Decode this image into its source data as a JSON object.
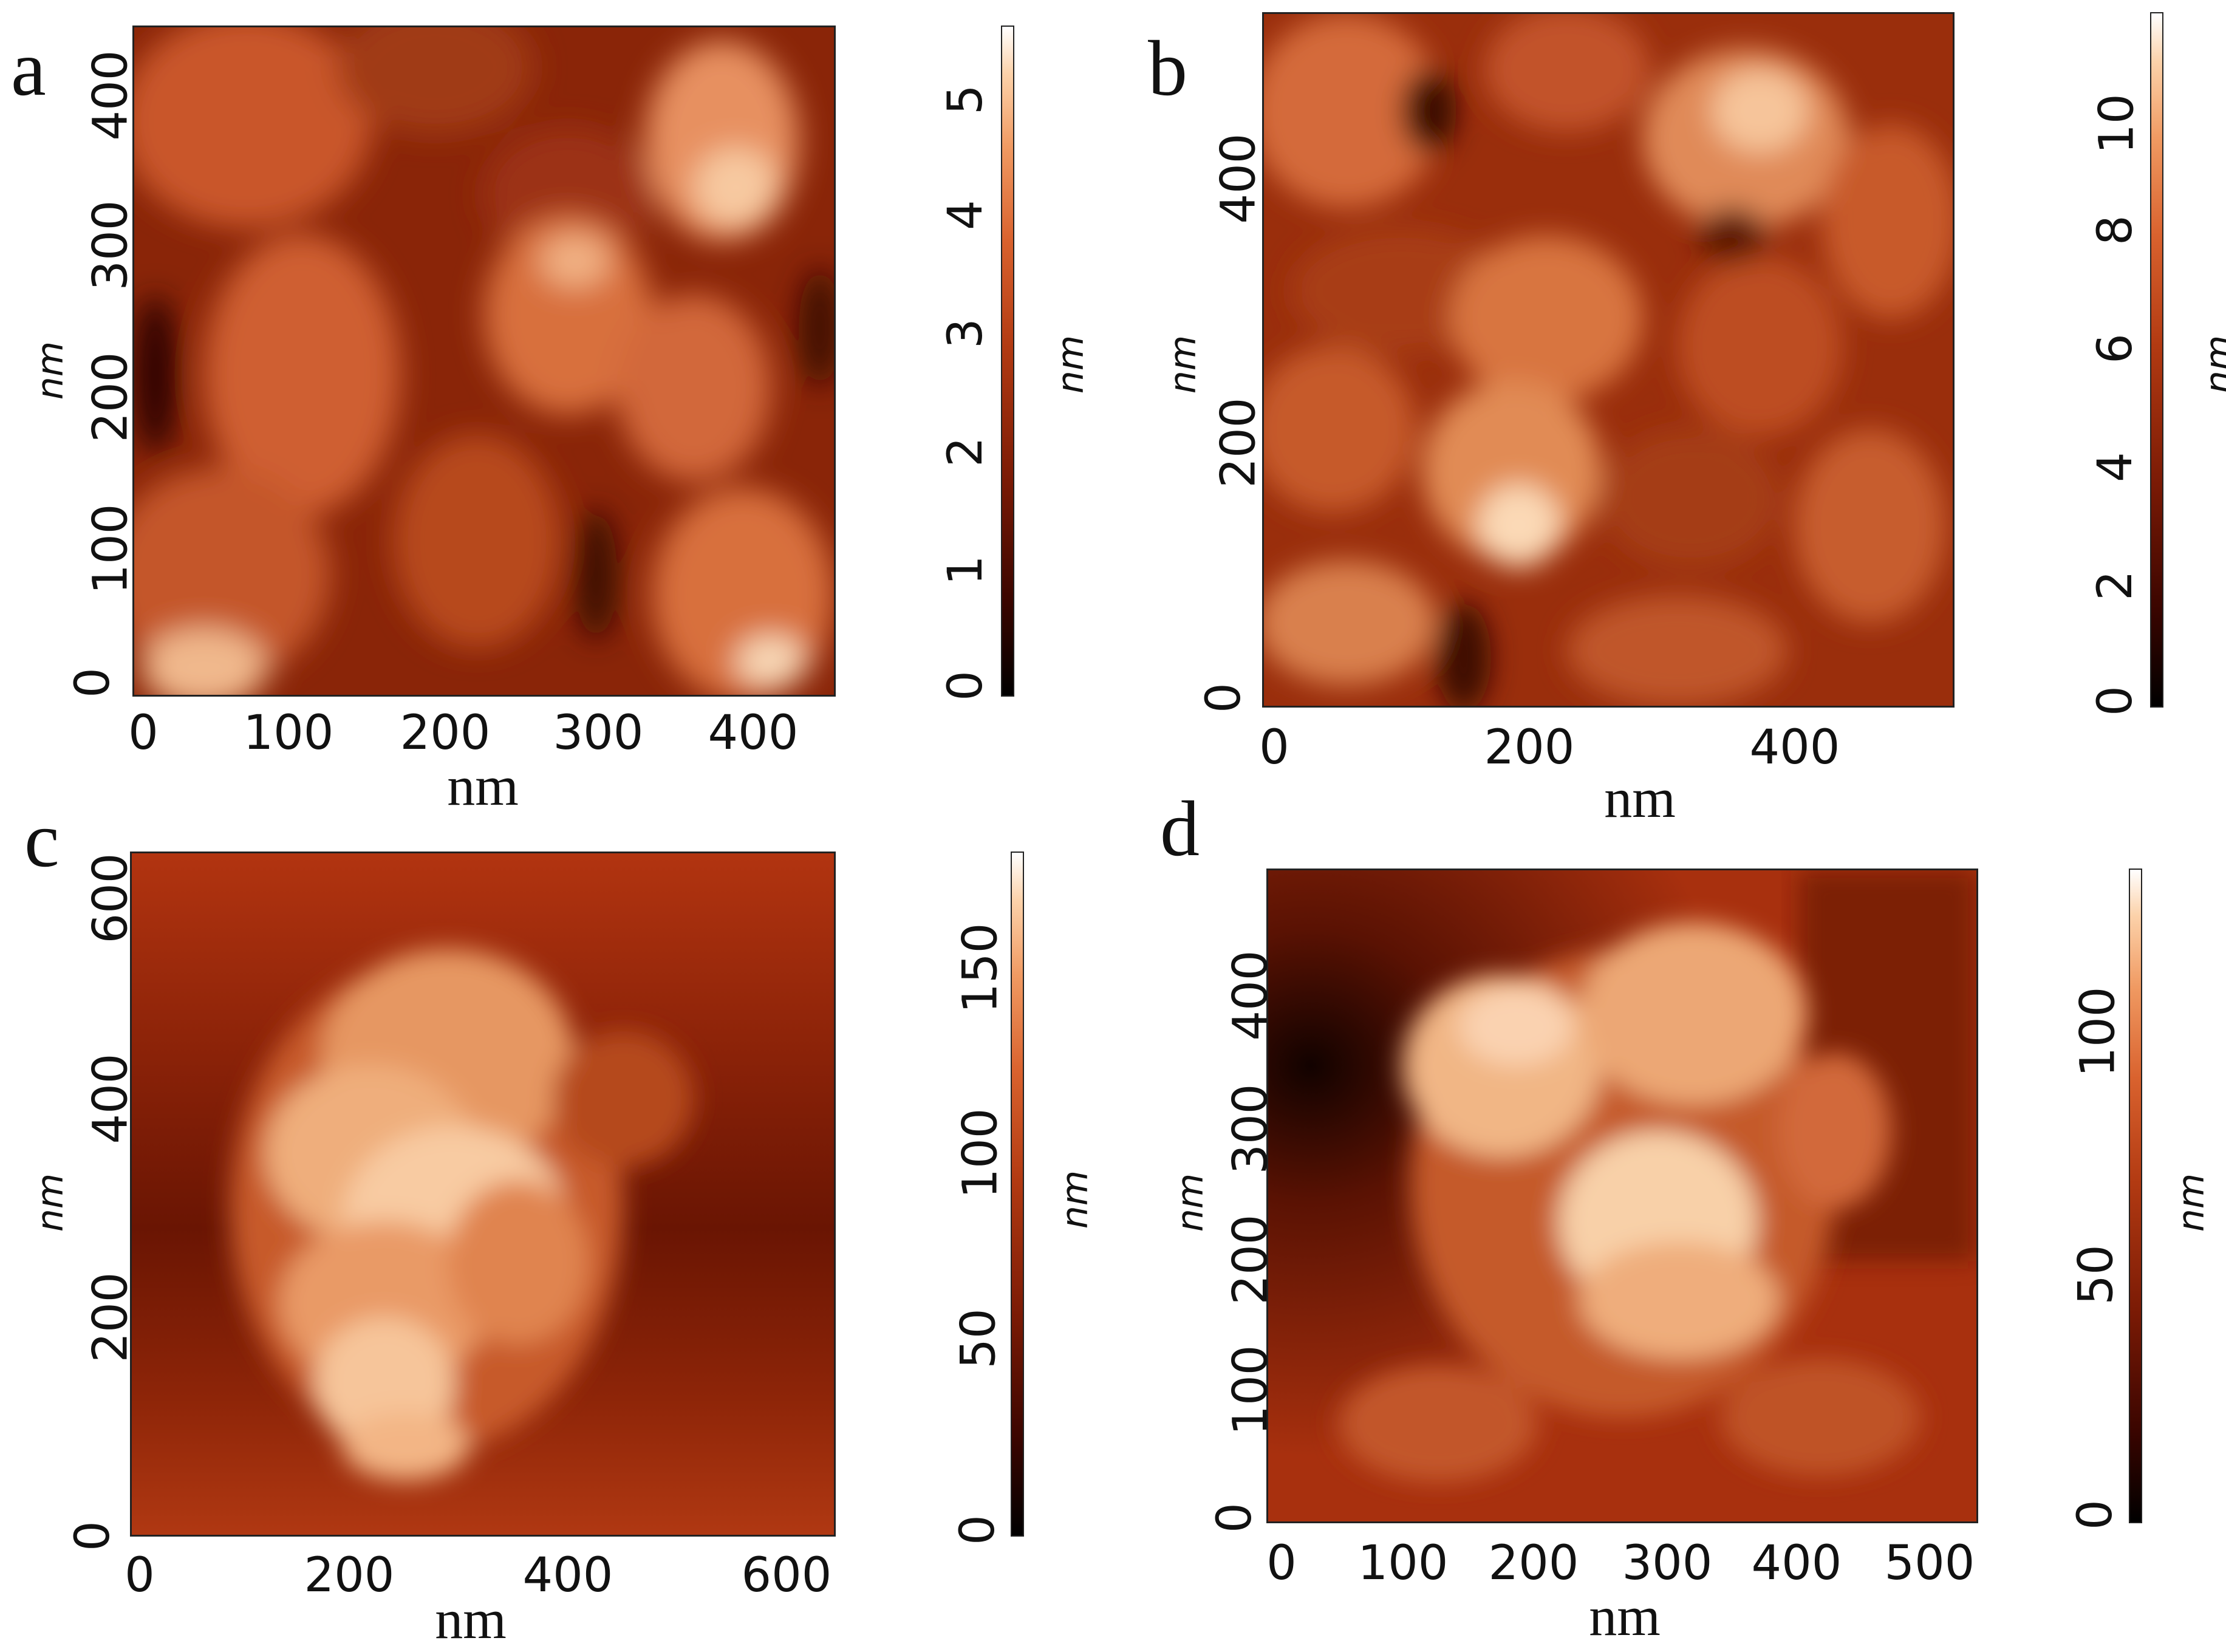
{
  "figure": {
    "panels": [
      {
        "id": "a",
        "label": "a",
        "x_ticks": [
          "0",
          "100",
          "200",
          "300",
          "400"
        ],
        "y_ticks": [
          "0",
          "100",
          "200",
          "300",
          "400"
        ],
        "x_title": "nm",
        "y_title": "nm",
        "colorbar_ticks": [
          "0",
          "1",
          "2",
          "3",
          "4",
          "5"
        ],
        "colorbar_unit": "nm"
      },
      {
        "id": "b",
        "label": "b",
        "x_ticks": [
          "0",
          "200",
          "400"
        ],
        "y_ticks": [
          "0",
          "200",
          "400"
        ],
        "x_title": "nm",
        "y_title": "nm",
        "colorbar_ticks": [
          "0",
          "2",
          "4",
          "6",
          "8",
          "10"
        ],
        "colorbar_unit": "nm"
      },
      {
        "id": "c",
        "label": "c",
        "x_ticks": [
          "0",
          "200",
          "400",
          "600"
        ],
        "y_ticks": [
          "0",
          "200",
          "400",
          "600"
        ],
        "x_title": "nm",
        "y_title": "nm",
        "colorbar_ticks": [
          "0",
          "50",
          "100",
          "150"
        ],
        "colorbar_unit": "nm"
      },
      {
        "id": "d",
        "label": "d",
        "x_ticks": [
          "0",
          "100",
          "200",
          "300",
          "400",
          "500"
        ],
        "y_ticks": [
          "0",
          "100",
          "200",
          "300",
          "400"
        ],
        "x_title": "nm",
        "y_title": "nm",
        "colorbar_ticks": [
          "0",
          "50",
          "100"
        ],
        "colorbar_unit": "nm"
      }
    ],
    "colormap": [
      "#000000",
      "#7a1a05",
      "#b23a12",
      "#d9622e",
      "#f09a62",
      "#ffffff"
    ]
  }
}
